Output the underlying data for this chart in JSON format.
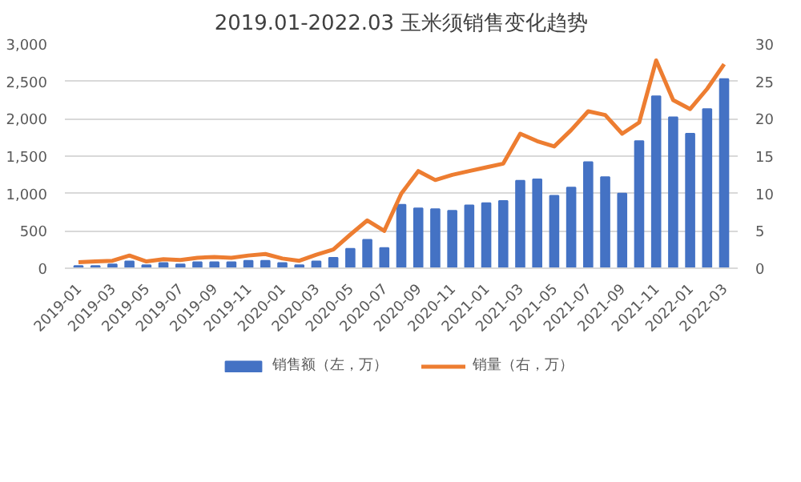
{
  "chart_data": {
    "type": "bar",
    "title": "2019.01-2022.03 玉米须销售变化趋势",
    "categories": [
      "2019-01",
      null,
      "2019-03",
      null,
      "2019-05",
      null,
      "2019-07",
      null,
      "2019-09",
      null,
      "2019-11",
      null,
      "2020-01",
      null,
      "2020-03",
      null,
      "2020-05",
      null,
      "2020-07",
      null,
      "2020-09",
      null,
      "2020-11",
      null,
      "2021-01",
      null,
      "2021-03",
      null,
      "2021-05",
      null,
      "2021-07",
      null,
      "2021-09",
      null,
      "2021-11",
      null,
      "2022-01",
      null,
      "2022-03"
    ],
    "series": [
      {
        "name": "销售额（左，万）",
        "color": "#4472c4",
        "values": [
          30,
          30,
          50,
          90,
          40,
          70,
          50,
          80,
          80,
          80,
          100,
          100,
          70,
          40,
          90,
          140,
          260,
          380,
          270,
          850,
          800,
          790,
          770,
          840,
          870,
          900,
          1170,
          1190,
          970,
          1080,
          1420,
          1220,
          1000,
          1700,
          2300,
          2020,
          1800,
          2130,
          2530
        ]
      },
      {
        "name": "销量（右，万）",
        "type": "line",
        "axis": "y2",
        "color": "#ed7d31",
        "values": [
          0.8,
          0.9,
          1.0,
          1.7,
          0.9,
          1.2,
          1.1,
          1.4,
          1.5,
          1.4,
          1.7,
          1.9,
          1.3,
          1.0,
          1.8,
          2.5,
          4.5,
          6.4,
          5.0,
          10.0,
          13.0,
          11.8,
          12.5,
          13.0,
          13.5,
          14.0,
          18.0,
          17.0,
          16.3,
          18.5,
          21.0,
          20.5,
          18.0,
          19.5,
          27.8,
          22.5,
          21.3,
          24.0,
          27.3
        ]
      }
    ],
    "ylim": [
      0,
      3000
    ],
    "yticks": [
      {
        "value": 0,
        "label": "0"
      },
      {
        "value": 500,
        "label": "500"
      },
      {
        "value": 1000,
        "label": "1,000"
      },
      {
        "value": 1500,
        "label": "1,500"
      },
      {
        "value": 2000,
        "label": "2,000"
      },
      {
        "value": 2500,
        "label": "2,500"
      },
      {
        "value": 3000,
        "label": "3,000"
      }
    ],
    "y2lim": [
      0,
      30
    ],
    "y2ticks": [
      0,
      5,
      10,
      15,
      20,
      25,
      30
    ],
    "grid": "y",
    "legend": "bottom"
  }
}
